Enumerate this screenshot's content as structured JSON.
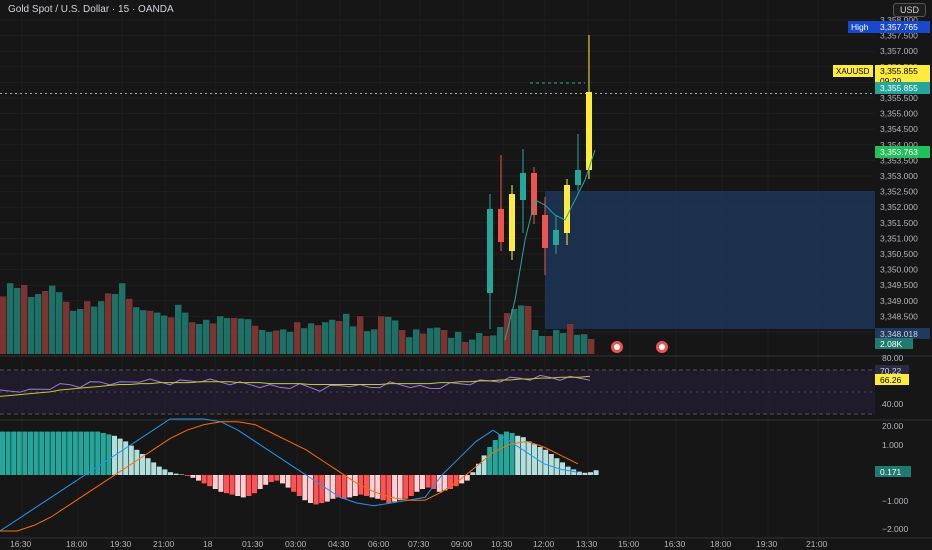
{
  "header": {
    "title": "Gold Spot / U.S. Dollar · 15 · OANDA",
    "currency": "USD"
  },
  "colors": {
    "up": "#26a69a",
    "down": "#ef5350",
    "highlight": "#ffeb3b",
    "zone": "#1e3a5f",
    "rsi": "#9c7fd6",
    "rsi_ma": "#c0ca33",
    "bg": "#161616",
    "grid": "#1f1f1f"
  },
  "price_axis": {
    "ticks": [
      "3,358.000",
      "3,357.500",
      "3,357.000",
      "3,356.500",
      "3,356.000",
      "3,355.500",
      "3,355.000",
      "3,354.500",
      "3,354.000",
      "3,353.500",
      "3,353.000",
      "3,352.500",
      "3,352.000",
      "3,351.500",
      "3,351.000",
      "3,350.500",
      "3,350.000",
      "3,349.500",
      "3,349.000",
      "3,348.500",
      "3,347.500"
    ],
    "high_label": "High",
    "high_value": "3,357.765",
    "symbol_label": "XAUUSD",
    "last_price": "3,355.855",
    "countdown": "09:20",
    "last_price2": "3,355.855",
    "green_label": "3,353.763",
    "blue_label": "3,348.018",
    "volume_label": "2.08K"
  },
  "rsi_axis": {
    "ticks": [
      "80.00",
      "40.00",
      "20.00"
    ],
    "value1": "70.22",
    "value2": "66.26"
  },
  "macd_axis": {
    "ticks": [
      "1.000",
      "0.000",
      "−1.000",
      "−2.000"
    ],
    "value": "0.171"
  },
  "time_axis": [
    "16:30",
    "18:00",
    "19:30",
    "21:00",
    "18",
    "01:30",
    "03:00",
    "04:30",
    "06:00",
    "07:30",
    "09:00",
    "10:30",
    "12:00",
    "13:30",
    "15:00",
    "16:30",
    "18:00",
    "19:30",
    "21:00"
  ],
  "chart_data": {
    "type": "candlestick",
    "title": "Gold Spot / U.S. Dollar · 15 · OANDA",
    "ylim": [
      3347.3,
      3358.3
    ],
    "candles": [
      {
        "o": 3349.2,
        "h": 3352.5,
        "l": 3348.0,
        "c": 3352.0
      },
      {
        "o": 3352.0,
        "h": 3353.8,
        "l": 3350.6,
        "c": 3350.9
      },
      {
        "o": 3350.6,
        "h": 3352.8,
        "l": 3350.3,
        "c": 3352.5
      },
      {
        "o": 3352.3,
        "h": 3354.0,
        "l": 3351.2,
        "c": 3353.2
      },
      {
        "o": 3353.2,
        "h": 3353.4,
        "l": 3351.5,
        "c": 3351.8
      },
      {
        "o": 3351.8,
        "h": 3352.4,
        "l": 3349.8,
        "c": 3350.7
      },
      {
        "o": 3350.8,
        "h": 3351.8,
        "l": 3350.5,
        "c": 3351.3
      },
      {
        "o": 3351.2,
        "h": 3353.0,
        "l": 3350.8,
        "c": 3352.8
      },
      {
        "o": 3352.8,
        "h": 3354.5,
        "l": 3352.6,
        "c": 3353.3
      },
      {
        "o": 3353.3,
        "h": 3357.8,
        "l": 3353.0,
        "c": 3355.9
      }
    ],
    "volume": [
      96,
      118,
      110,
      115,
      95,
      100,
      105,
      114,
      103,
      87,
      72,
      75,
      88,
      79,
      88,
      101,
      100,
      118,
      92,
      78,
      73,
      72,
      69,
      64,
      61,
      82,
      69,
      53,
      50,
      57,
      51,
      63,
      60,
      60,
      59,
      58,
      47,
      40,
      37,
      39,
      41,
      37,
      53,
      43,
      51,
      48,
      53,
      57,
      55,
      67,
      46,
      63,
      38,
      41,
      63,
      62,
      56,
      40,
      28,
      41,
      34,
      43,
      44,
      40,
      27,
      37,
      20,
      24,
      35,
      30,
      31,
      45,
      68,
      75,
      81,
      80,
      40,
      30,
      30,
      40,
      35,
      50,
      32,
      33,
      25
    ],
    "rsi": {
      "ylim": [
        20,
        90
      ],
      "series": [
        55,
        56,
        57,
        56,
        58,
        60,
        62,
        63,
        62,
        64,
        66,
        65,
        64,
        66,
        68,
        67,
        66,
        65,
        66,
        67,
        68,
        67,
        66,
        65,
        64,
        63,
        62,
        61,
        60,
        61,
        62,
        60,
        58,
        60,
        62,
        63,
        61,
        60,
        62,
        64,
        63,
        62,
        60,
        59,
        61,
        63,
        64,
        65,
        66,
        67,
        68,
        69,
        70,
        70,
        71,
        71,
        70,
        70,
        70,
        70
      ],
      "ma": [
        48,
        49,
        50,
        51,
        52,
        53,
        55,
        56,
        57,
        58,
        59,
        60,
        61,
        61,
        62,
        62,
        63,
        63,
        63,
        63,
        64,
        64,
        64,
        64,
        63,
        63,
        63,
        62,
        62,
        62,
        62,
        61,
        61,
        61,
        61,
        61,
        61,
        61,
        61,
        62,
        62,
        62,
        62,
        62,
        63,
        63,
        64,
        64,
        65,
        65,
        66,
        66,
        67,
        67,
        68,
        68,
        69,
        69,
        69,
        70
      ]
    },
    "macd": {
      "ylim": [
        -2.2,
        2.2
      ],
      "hist": [
        1.55,
        1.55,
        1.55,
        1.55,
        1.55,
        1.55,
        1.55,
        1.55,
        1.55,
        1.55,
        1.55,
        1.55,
        1.55,
        1.55,
        1.55,
        1.55,
        1.55,
        1.55,
        1.5,
        1.45,
        1.4,
        1.3,
        1.2,
        1.05,
        0.9,
        0.75,
        0.6,
        0.45,
        0.3,
        0.2,
        0.1,
        0.05,
        0.02,
        -0.03,
        -0.1,
        -0.2,
        -0.3,
        -0.4,
        -0.5,
        -0.6,
        -0.65,
        -0.7,
        -0.75,
        -0.8,
        -0.75,
        -0.65,
        -0.5,
        -0.35,
        -0.25,
        -0.2,
        -0.3,
        -0.45,
        -0.6,
        -0.75,
        -0.9,
        -1.0,
        -1.05,
        -1.0,
        -0.95,
        -0.85,
        -0.8,
        -0.85,
        -0.8,
        -0.75,
        -0.7,
        -0.75,
        -0.8,
        -0.85,
        -0.9,
        -1.0,
        -0.95,
        -0.9,
        -0.85,
        -0.75,
        -0.6,
        -0.5,
        -0.45,
        -0.5,
        -0.6,
        -0.55,
        -0.5,
        -0.4,
        -0.3,
        -0.2,
        0.1,
        0.4,
        0.7,
        1.0,
        1.25,
        1.45,
        1.55,
        1.5,
        1.4,
        1.35,
        1.2,
        1.1,
        1.0,
        0.9,
        0.75,
        0.6,
        0.45,
        0.3,
        0.2,
        0.12,
        0.08,
        0.1,
        0.17
      ],
      "macd": [
        -2.0,
        -1.6,
        -1.2,
        -0.8,
        -0.4,
        0.0,
        0.4,
        0.8,
        1.2,
        1.6,
        2.0,
        2.0,
        2.0,
        1.9,
        1.6,
        1.2,
        0.8,
        0.4,
        0.0,
        -0.4,
        -0.8,
        -1.0,
        -1.1,
        -1.0,
        -0.9,
        -0.8,
        0.0,
        0.6,
        1.2,
        1.6,
        1.2,
        0.8,
        0.4,
        0.2,
        0.1
      ],
      "signal": [
        -2.0,
        -2.0,
        -1.8,
        -1.5,
        -1.1,
        -0.7,
        -0.3,
        0.1,
        0.5,
        0.9,
        1.3,
        1.6,
        1.8,
        1.9,
        1.9,
        1.8,
        1.5,
        1.2,
        0.9,
        0.5,
        0.1,
        -0.3,
        -0.6,
        -0.8,
        -0.9,
        -0.9,
        -0.6,
        -0.2,
        0.3,
        0.8,
        1.1,
        1.2,
        1.0,
        0.7,
        0.4
      ]
    }
  }
}
